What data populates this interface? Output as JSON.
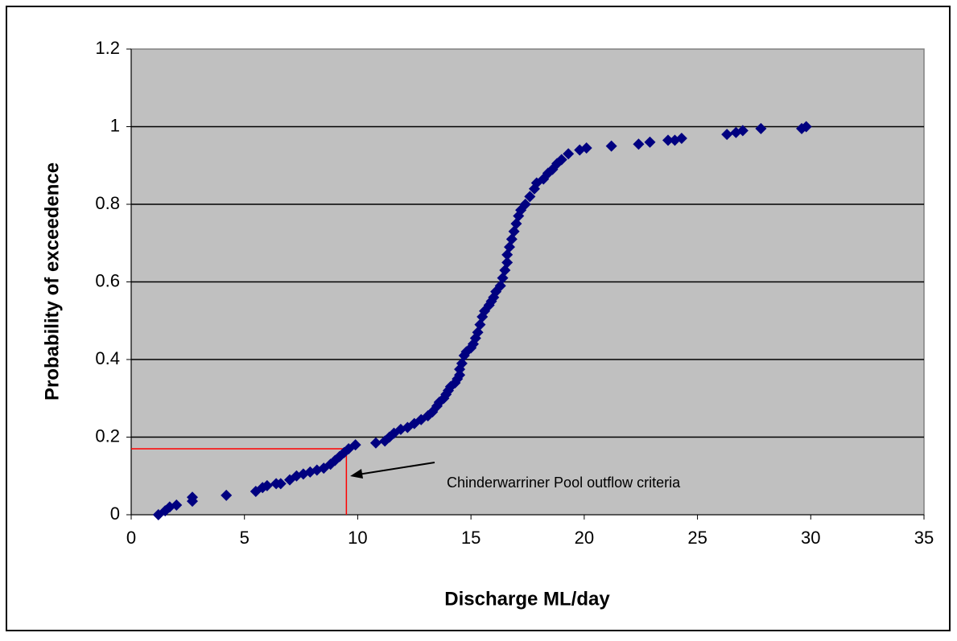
{
  "chart_data": {
    "type": "scatter",
    "xlabel": "Discharge ML/day",
    "ylabel": "Probability of exceedence",
    "color": "#000080",
    "plot_background": "#c0c0c0",
    "grid": true,
    "xlim": [
      0,
      35
    ],
    "xticks": [
      0,
      5,
      10,
      15,
      20,
      25,
      30,
      35
    ],
    "ylim": [
      0,
      1.2
    ],
    "yticks": [
      0,
      0.2,
      0.4,
      0.6,
      0.8,
      1,
      1.2
    ],
    "x": [
      1.2,
      1.5,
      1.7,
      2.0,
      2.7,
      2.7,
      4.2,
      5.5,
      5.8,
      6.0,
      6.4,
      6.6,
      7.0,
      7.3,
      7.6,
      7.9,
      8.2,
      8.5,
      8.8,
      9.0,
      9.2,
      9.4,
      9.6,
      9.9,
      10.8,
      11.2,
      11.4,
      11.6,
      11.9,
      12.2,
      12.5,
      12.8,
      13.1,
      13.3,
      13.5,
      13.6,
      13.8,
      13.9,
      14.0,
      14.1,
      14.3,
      14.4,
      14.5,
      14.5,
      14.6,
      14.7,
      14.8,
      15.0,
      15.1,
      15.2,
      15.3,
      15.4,
      15.5,
      15.6,
      15.8,
      15.9,
      16.0,
      16.1,
      16.3,
      16.4,
      16.5,
      16.6,
      16.6,
      16.7,
      16.8,
      16.9,
      17.0,
      17.1,
      17.2,
      17.4,
      17.6,
      17.8,
      17.9,
      18.2,
      18.4,
      18.6,
      18.8,
      19.0,
      19.3,
      19.8,
      20.1,
      21.2,
      22.4,
      22.9,
      23.7,
      24.0,
      24.3,
      26.3,
      26.7,
      27.0,
      27.8,
      29.6,
      29.8
    ],
    "values": [
      0,
      0.01,
      0.02,
      0.025,
      0.035,
      0.045,
      0.05,
      0.06,
      0.07,
      0.075,
      0.08,
      0.08,
      0.09,
      0.1,
      0.105,
      0.11,
      0.115,
      0.12,
      0.13,
      0.14,
      0.15,
      0.16,
      0.17,
      0.18,
      0.185,
      0.19,
      0.2,
      0.21,
      0.22,
      0.225,
      0.235,
      0.245,
      0.255,
      0.265,
      0.28,
      0.29,
      0.3,
      0.31,
      0.32,
      0.33,
      0.34,
      0.35,
      0.36,
      0.375,
      0.39,
      0.41,
      0.42,
      0.43,
      0.44,
      0.455,
      0.47,
      0.49,
      0.51,
      0.525,
      0.54,
      0.55,
      0.56,
      0.575,
      0.59,
      0.61,
      0.63,
      0.65,
      0.67,
      0.69,
      0.71,
      0.73,
      0.75,
      0.77,
      0.785,
      0.8,
      0.82,
      0.84,
      0.855,
      0.865,
      0.88,
      0.89,
      0.905,
      0.915,
      0.93,
      0.94,
      0.945,
      0.95,
      0.955,
      0.96,
      0.965,
      0.965,
      0.97,
      0.98,
      0.985,
      0.99,
      0.995,
      0.995,
      1.0
    ],
    "annotation": {
      "text": "Chinderwarriner Pool outflow criteria",
      "x": 9.5,
      "y": 0.17,
      "color": "#ff0000"
    }
  }
}
